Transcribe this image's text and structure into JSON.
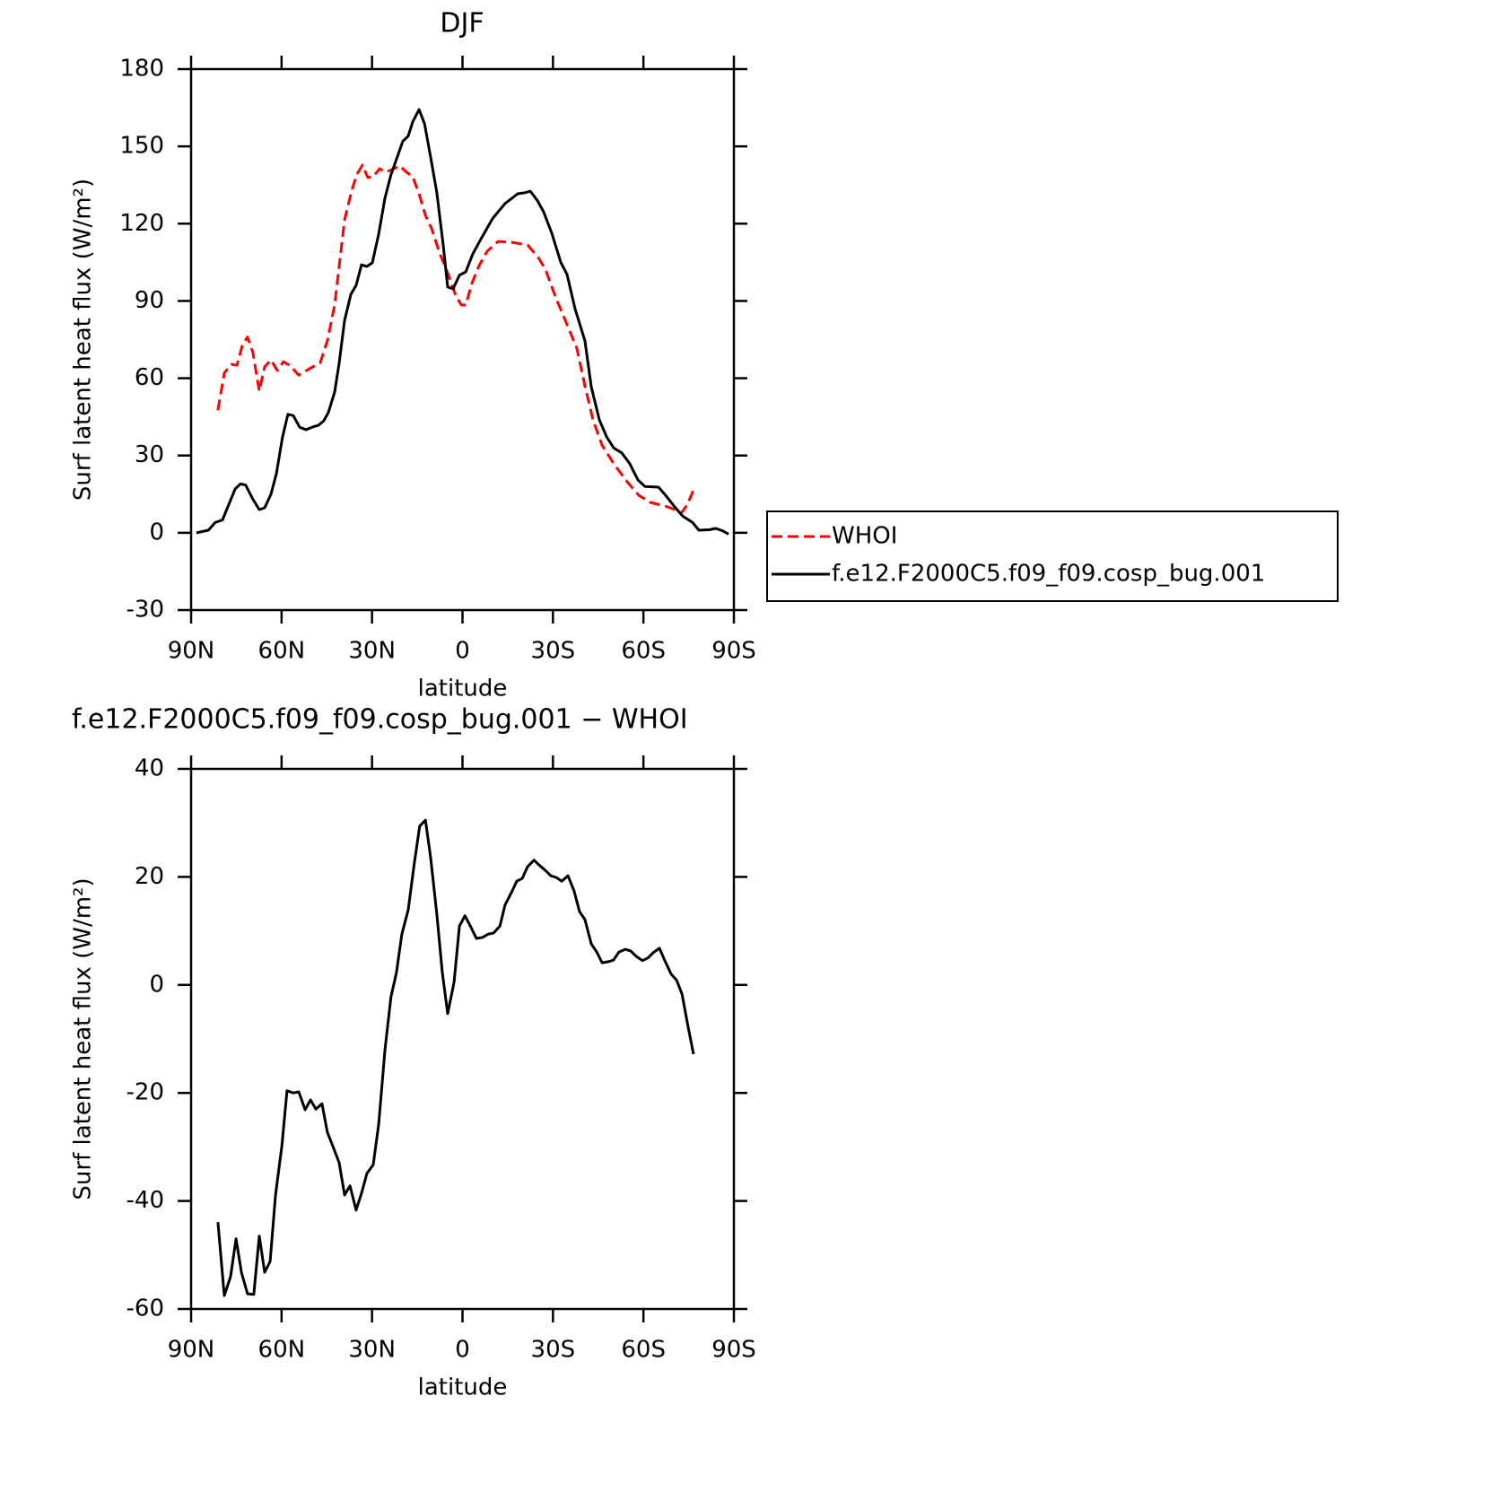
{
  "chart_data": [
    {
      "type": "line",
      "title": "DJF",
      "x_label": "latitude",
      "y_label": "Surf latent heat flux (W/m²)",
      "xlim": [
        90,
        -90
      ],
      "xticks": [
        {
          "value": 90,
          "label": "90N"
        },
        {
          "value": 60,
          "label": "60N"
        },
        {
          "value": 30,
          "label": "30N"
        },
        0,
        {
          "value": -30,
          "label": "30S"
        },
        {
          "value": -60,
          "label": "60S"
        },
        {
          "value": -90,
          "label": "90S"
        }
      ],
      "ylim": [
        -30,
        180
      ],
      "yticks": [
        -30,
        0,
        30,
        60,
        90,
        120,
        150,
        180
      ],
      "legend": "right",
      "series": [
        {
          "name": "WHOI",
          "color": "#ff0000",
          "dash": true,
          "x": [
            81.1,
            79,
            76.6,
            74.8,
            73,
            71.3,
            69.5,
            67.4,
            65.6,
            63.5,
            61.4,
            59.4,
            57.3,
            54.3,
            50.7,
            47.2,
            44.8,
            42.4,
            39.1,
            36.7,
            35,
            33.2,
            31.4,
            29.6,
            27.5,
            25.4,
            23.4,
            20.7,
            18.9,
            16.5,
            14.4,
            12.3,
            10.3,
            7.6,
            4.6,
            2.2,
            0.4,
            -1.1,
            -3.1,
            -5.5,
            -8.2,
            -11.8,
            -16.2,
            -21.6,
            -25.1,
            -27.5,
            -31.1,
            -34.1,
            -37.9,
            -40.6,
            -43.3,
            -46.3,
            -50.4,
            -54.9,
            -58.5,
            -62.3,
            -67.1,
            -69.8,
            -72.5,
            -74.5,
            -76.9
          ],
          "values": [
            47.6,
            62,
            65.4,
            65,
            72.7,
            76,
            70,
            55,
            64.4,
            67.1,
            63,
            66.4,
            65,
            61.2,
            63.7,
            66,
            74.5,
            88.4,
            121.5,
            133,
            139.2,
            142.7,
            137.9,
            138.2,
            141.3,
            140,
            141,
            142.4,
            140.3,
            138.2,
            131.6,
            123.2,
            118.3,
            108.6,
            100,
            92,
            88.4,
            88.4,
            96.8,
            103.7,
            109.3,
            113.1,
            112.8,
            111.7,
            106.9,
            102.3,
            90.8,
            82.5,
            71.7,
            57,
            43.8,
            34,
            26.4,
            19.4,
            14.5,
            11.8,
            10.4,
            9.3,
            7.6,
            10.8,
            17.4
          ]
        },
        {
          "name": "f.e12.F2000C5.f09_f09.cosp_bug.001",
          "color": "#000000",
          "dash": false,
          "x": [
            88.2,
            84.3,
            82,
            79.6,
            75.4,
            73.6,
            71.9,
            69.5,
            67.4,
            65.6,
            63.5,
            61.7,
            59.7,
            57.9,
            56.1,
            54,
            51.9,
            49.8,
            47.8,
            46,
            44.5,
            42.4,
            40.9,
            39.1,
            37,
            35.3,
            33.5,
            31.7,
            29.9,
            27.8,
            25.7,
            23.7,
            21.6,
            19.8,
            18,
            16.5,
            14.4,
            12.6,
            10.6,
            8.5,
            6.4,
            4.9,
            3.1,
            1,
            -1.1,
            -3.4,
            -6.1,
            -10,
            -14.1,
            -18.3,
            -20.7,
            -22.5,
            -24.8,
            -26.9,
            -29.6,
            -32.6,
            -34.7,
            -37.3,
            -40.6,
            -42.7,
            -45.4,
            -47.8,
            -50.1,
            -52.8,
            -55.5,
            -58.2,
            -60.5,
            -65,
            -67.4,
            -70.4,
            -73,
            -76.3,
            -78.4,
            -82,
            -84,
            -86.2,
            -88.2
          ],
          "values": [
            0,
            1,
            4,
            5,
            17,
            19,
            18.5,
            13,
            9,
            9.7,
            15,
            23,
            37,
            46,
            45.5,
            41,
            40,
            41,
            41.7,
            43.5,
            46.6,
            54.6,
            65.8,
            82.5,
            92.6,
            96,
            104,
            103.4,
            104.8,
            116,
            130,
            139,
            146,
            152,
            154,
            159.5,
            164.3,
            158.8,
            146,
            132,
            111.7,
            95.4,
            94.7,
            100,
            101.3,
            108.2,
            114,
            122,
            127.8,
            131.6,
            132,
            132.6,
            129,
            124.6,
            116.3,
            105,
            100.2,
            87,
            74.5,
            56.7,
            43.8,
            37.2,
            33,
            31,
            26.8,
            20.5,
            18,
            17.7,
            14.5,
            10,
            6.5,
            4,
            1,
            1.2,
            1.7,
            0.8,
            -0.5
          ]
        }
      ]
    },
    {
      "type": "line",
      "title": "f.e12.F2000C5.f09_f09.cosp_bug.001 − WHOI",
      "x_label": "latitude",
      "y_label": "Surf latent heat flux (W/m²)",
      "xlim": [
        90,
        -90
      ],
      "xticks": [
        {
          "value": 90,
          "label": "90N"
        },
        {
          "value": 60,
          "label": "60N"
        },
        {
          "value": 30,
          "label": "30N"
        },
        0,
        {
          "value": -30,
          "label": "30S"
        },
        {
          "value": -60,
          "label": "60S"
        },
        {
          "value": -90,
          "label": "90S"
        }
      ],
      "ylim": [
        -60,
        40
      ],
      "yticks": [
        -60,
        -40,
        -20,
        0,
        20,
        40
      ],
      "series": [
        {
          "color": "#000000",
          "dash": false,
          "x": [
            81.1,
            79,
            76.9,
            75.1,
            73.3,
            71.3,
            69.2,
            67.4,
            65.6,
            63.8,
            62,
            59.9,
            58.2,
            56.1,
            54.3,
            52.2,
            50.4,
            48.6,
            46.6,
            44.8,
            42.7,
            40.9,
            39.1,
            37.3,
            35.3,
            33.5,
            31.7,
            29.6,
            27.8,
            25.7,
            23.7,
            21.9,
            20.1,
            18,
            15.9,
            14.2,
            12.3,
            10.6,
            8.5,
            6.7,
            4.9,
            2.8,
            1,
            -0.8,
            -2.9,
            -4.6,
            -6.7,
            -8.5,
            -10.3,
            -12.4,
            -14.1,
            -16.2,
            -18,
            -19.8,
            -21.6,
            -23.7,
            -25.4,
            -27.5,
            -29.3,
            -31.1,
            -32.9,
            -35,
            -37,
            -38.8,
            -40.6,
            -42.7,
            -44.5,
            -46.3,
            -48.4,
            -50.1,
            -51.9,
            -54,
            -55.8,
            -57.6,
            -59.7,
            -61.5,
            -63.3,
            -65.3,
            -67.1,
            -69.2,
            -71,
            -72.8,
            -74.8,
            -76.6
          ],
          "values": [
            -43.9,
            -57.5,
            -54,
            -47,
            -53.2,
            -57.2,
            -57.3,
            -46.5,
            -53.2,
            -51.2,
            -38.9,
            -29.8,
            -19.6,
            -20,
            -19.8,
            -23.1,
            -21.3,
            -23,
            -22,
            -27.3,
            -30.3,
            -32.9,
            -38.9,
            -37.2,
            -41.7,
            -38.6,
            -34.9,
            -33.3,
            -25.8,
            -12,
            -2.2,
            2.3,
            9.4,
            13.9,
            22.9,
            29.4,
            30.5,
            23.7,
            13.1,
            2.3,
            -5.3,
            0.5,
            10.9,
            12.8,
            10.6,
            8.6,
            8.8,
            9.4,
            9.6,
            10.9,
            14.8,
            17.1,
            19.2,
            19.7,
            21.9,
            23.1,
            22.2,
            21.2,
            20.2,
            19.9,
            19.2,
            20.2,
            17.4,
            13.6,
            12.1,
            7.6,
            6.1,
            4.1,
            4.3,
            4.6,
            6.1,
            6.6,
            6.3,
            5.3,
            4.5,
            5,
            6,
            6.8,
            4.5,
            2,
            0.9,
            -1.7,
            -7.7,
            -12.8
          ]
        }
      ]
    }
  ]
}
